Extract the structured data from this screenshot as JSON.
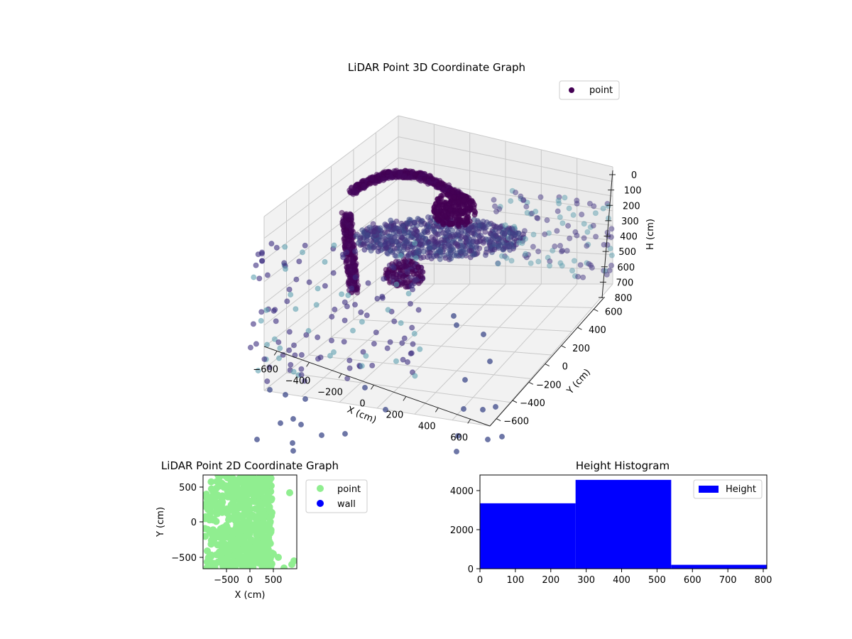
{
  "chart_data": [
    {
      "type": "scatter3d",
      "title": "LiDAR Point 3D Coordinate Graph",
      "xlabel": "X (cm)",
      "ylabel": "Y (cm)",
      "zlabel": "H (cm)",
      "xticks": [
        "−600",
        "−400",
        "−200",
        "0",
        "200",
        "400",
        "600"
      ],
      "yticks": [
        "−600",
        "−400",
        "−200",
        "0",
        "200",
        "400",
        "600"
      ],
      "zticks": [
        "0",
        "100",
        "200",
        "300",
        "400",
        "500",
        "600",
        "700",
        "800"
      ],
      "xlim": [
        -700,
        700
      ],
      "ylim": [
        -700,
        700
      ],
      "zlim": [
        0,
        800
      ],
      "zaxis_inverted": true,
      "grid": true,
      "legend": {
        "position": "top-right",
        "entries": [
          {
            "label": "point",
            "color": "#440154"
          }
        ]
      },
      "colormap": "viridis",
      "series": [
        {
          "name": "point",
          "note_points": "dense dome/arch cluster near center, ring of scattered outliers"
        }
      ]
    },
    {
      "type": "scatter",
      "title": "LiDAR Point 2D Coordinate Graph",
      "xlabel": "X (cm)",
      "ylabel": "Y (cm)",
      "xticks": [
        "−500",
        "0",
        "500"
      ],
      "yticks": [
        "500",
        "0",
        "−500"
      ],
      "xlim": [
        -680,
        680
      ],
      "ylim": [
        -680,
        680
      ],
      "legend": {
        "position": "outside-right",
        "entries": [
          {
            "label": "point",
            "color": "#90ee90"
          },
          {
            "label": "wall",
            "color": "#0000ff"
          }
        ]
      }
    },
    {
      "type": "histogram",
      "title": "Height Histogram",
      "xticks": [
        "0",
        "100",
        "200",
        "300",
        "400",
        "500",
        "600",
        "700",
        "800"
      ],
      "yticks": [
        "0",
        "2000",
        "4000"
      ],
      "xlim": [
        0,
        810
      ],
      "ylim": [
        0,
        4800
      ],
      "bins": [
        {
          "x0": 0,
          "x1": 270,
          "count": 3350
        },
        {
          "x0": 270,
          "x1": 540,
          "count": 4550
        },
        {
          "x0": 540,
          "x1": 810,
          "count": 200
        }
      ],
      "color": "#0000ff",
      "legend": {
        "position": "top-right",
        "entries": [
          {
            "label": "Height",
            "color": "#0000ff"
          }
        ]
      }
    }
  ]
}
